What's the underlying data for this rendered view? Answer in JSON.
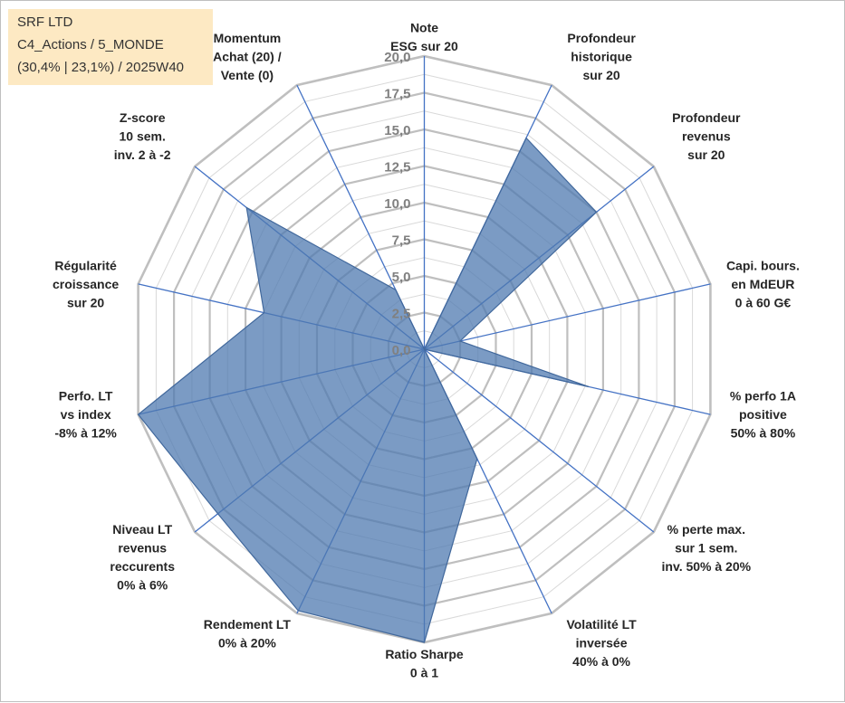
{
  "header": {
    "line1": "SRF LTD",
    "line2": "C4_Actions / 5_MONDE",
    "line3": "(30,4% | 23,1%) / 2025W40"
  },
  "chart_data": {
    "type": "radar",
    "rmin": 0,
    "rmax": 20,
    "ticks": [
      "0,0",
      "2,5",
      "5,0",
      "7,5",
      "10,0",
      "12,5",
      "15,0",
      "17,5",
      "20,0"
    ],
    "categories": [
      [
        "Note",
        "ESG sur 20"
      ],
      [
        "Profondeur",
        "historique",
        "sur 20"
      ],
      [
        "Profondeur",
        "revenus",
        "sur 20"
      ],
      [
        "Capi. bours.",
        "en MdEUR",
        "0 à 60 G€"
      ],
      [
        "% perfo 1A",
        "positive",
        "50% à 80%"
      ],
      [
        "% perte max.",
        "sur 1 sem.",
        "inv. 50% à 20%"
      ],
      [
        "Volatilité LT",
        "inversée",
        "40% à 0%"
      ],
      [
        "Ratio Sharpe",
        "0 à 1"
      ],
      [
        "Rendement LT",
        "0% à 20%"
      ],
      [
        "Niveau LT",
        "revenus",
        "reccurents",
        "0% à 6%"
      ],
      [
        "Perfo. LT",
        "vs index",
        "-8% à 12%"
      ],
      [
        "Régularité",
        "croissance",
        "sur 20"
      ],
      [
        "Z-score",
        "10 sem.",
        "inv. 2 à -2"
      ],
      [
        "Momentum",
        "Achat (20) /",
        "Vente (0)"
      ]
    ],
    "series": [
      {
        "name": "SRF LTD",
        "color": "#4f79b0",
        "values": [
          0,
          16,
          15,
          2.5,
          11.5,
          0,
          8.3,
          20,
          19.8,
          18,
          20,
          11.2,
          15.5,
          4.5
        ]
      }
    ]
  }
}
